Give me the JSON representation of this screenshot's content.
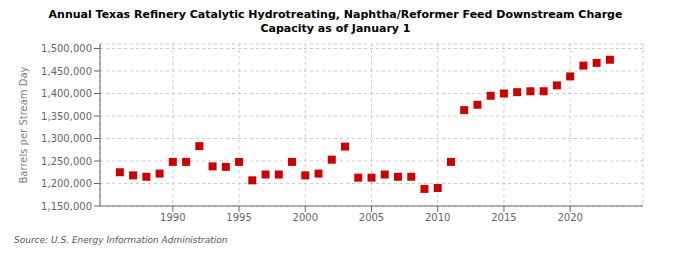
{
  "chart_data": {
    "type": "scatter",
    "title": "Annual Texas Refinery Catalytic Hydrotreating, Naphtha/Reformer Feed Downstream Charge\nCapacity as of January 1",
    "ylabel": "Barrels per Stream Day",
    "source": "Source: U.S. Energy Information Administration",
    "x": [
      1986,
      1987,
      1988,
      1989,
      1990,
      1991,
      1992,
      1993,
      1994,
      1995,
      1996,
      1997,
      1998,
      1999,
      2000,
      2001,
      2002,
      2003,
      2004,
      2005,
      2006,
      2007,
      2008,
      2009,
      2010,
      2011,
      2012,
      2013,
      2014,
      2015,
      2016,
      2017,
      2018,
      2019,
      2020,
      2021,
      2022,
      2023
    ],
    "values": [
      1225000,
      1218000,
      1215000,
      1222000,
      1248000,
      1248000,
      1283000,
      1238000,
      1237000,
      1248000,
      1207000,
      1220000,
      1220000,
      1248000,
      1218000,
      1222000,
      1253000,
      1282000,
      1213000,
      1213000,
      1220000,
      1215000,
      1215000,
      1188000,
      1190000,
      1248000,
      1363000,
      1375000,
      1395000,
      1400000,
      1403000,
      1405000,
      1405000,
      1418000,
      1438000,
      1462000,
      1468000,
      1475000
    ],
    "color": "#cc0000",
    "marker": "square",
    "xlim": [
      1984.5,
      2025.5
    ],
    "xticks": [
      1990,
      1995,
      2000,
      2005,
      2010,
      2015,
      2020
    ],
    "ylim": [
      1150000,
      1510000
    ],
    "yticks": [
      {
        "value": 1150000,
        "label": "1,150,000"
      },
      {
        "value": 1200000,
        "label": "1,200,000"
      },
      {
        "value": 1250000,
        "label": "1,250,000"
      },
      {
        "value": 1300000,
        "label": "1,300,000"
      },
      {
        "value": 1350000,
        "label": "1,350,000"
      },
      {
        "value": 1400000,
        "label": "1,400,000"
      },
      {
        "value": 1450000,
        "label": "1,450,000"
      },
      {
        "value": 1500000,
        "label": "1,500,000"
      }
    ],
    "grid": true
  }
}
